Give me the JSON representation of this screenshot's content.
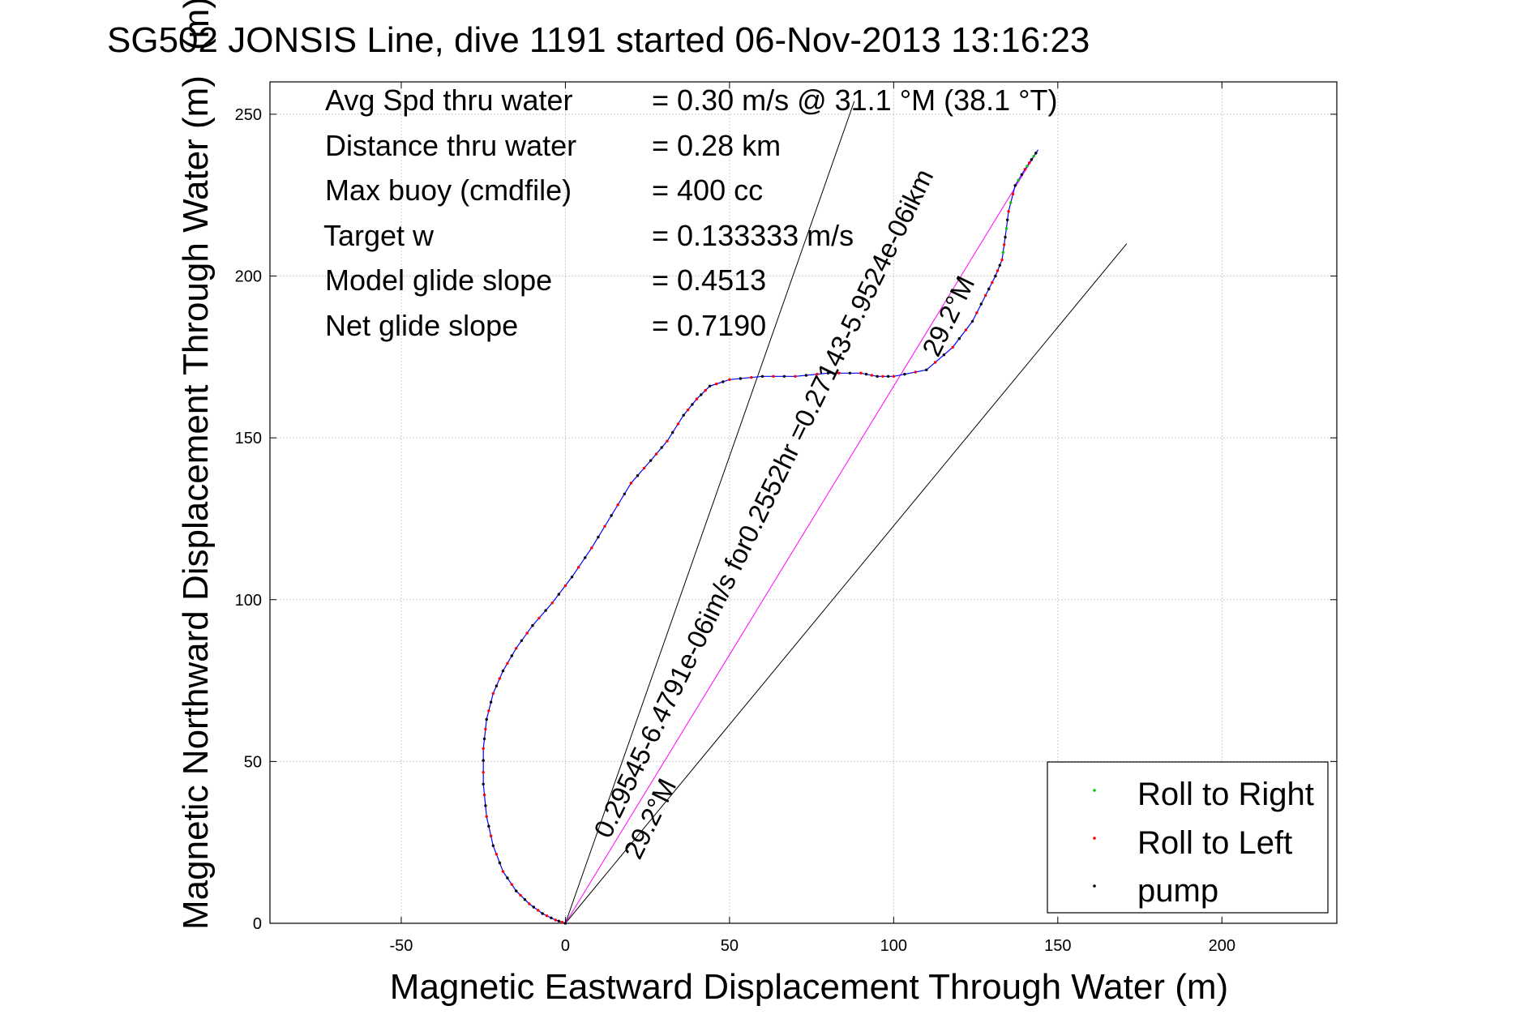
{
  "chart_data": {
    "type": "line",
    "title": "SG502 JONSIS Line, dive 1191 started 06-Nov-2013 13:16:23",
    "title_overlay": "(m)",
    "xlabel": "Magnetic Eastward Displacement Through Water (m)",
    "ylabel": "Magnetic Northward Displacement Through Water (m)",
    "xlim": [
      -90,
      235
    ],
    "ylim": [
      0,
      260
    ],
    "xticks": [
      -50,
      0,
      50,
      100,
      150,
      200
    ],
    "yticks": [
      0,
      50,
      100,
      150,
      200,
      250
    ],
    "grid": true,
    "legend_position": "bottom-right",
    "stats": [
      {
        "label": "Avg Spd thru water",
        "value": "=  0.30 m/s @  31.1 °M (38.1 °T)"
      },
      {
        "label": "Distance thru water",
        "value": "=  0.28 km"
      },
      {
        "label": "Max buoy (cmdfile)",
        "value": "= 400 cc"
      },
      {
        "label": "Target w",
        "value": "= 0.133333 m/s"
      },
      {
        "label": "Model glide slope",
        "value": "= 0.4513"
      },
      {
        "label": "Net glide slope",
        "value": "= 0.7190"
      }
    ],
    "series": [
      {
        "name": "Roll to Right",
        "color": "#00cc00"
      },
      {
        "name": "Roll to Left",
        "color": "#ff0000"
      },
      {
        "name": "pump",
        "color": "#000000"
      }
    ],
    "track_color": "#0000ff",
    "track_x": [
      0,
      -3,
      -7,
      -11,
      -15,
      -19,
      -22,
      -24,
      -25,
      -25,
      -24,
      -22,
      -19,
      -15,
      -10,
      -4,
      2,
      8,
      14,
      20,
      26,
      31,
      36,
      40,
      44,
      50,
      60,
      70,
      80,
      90,
      95,
      100,
      110,
      118,
      124,
      128,
      131,
      133,
      134,
      135,
      137,
      140,
      142,
      144
    ],
    "track_y": [
      0,
      1,
      3,
      6,
      10,
      16,
      24,
      33,
      43,
      54,
      63,
      71,
      78,
      85,
      92,
      99,
      107,
      116,
      126,
      136,
      143,
      149,
      157,
      162,
      166,
      168,
      169,
      169,
      170,
      170,
      169,
      169,
      171,
      178,
      186,
      194,
      200,
      205,
      212,
      220,
      228,
      233,
      236,
      239
    ],
    "lines": [
      {
        "name": "heading-line-upper",
        "x": [
          0,
          88
        ],
        "y": [
          0,
          254
        ]
      },
      {
        "name": "heading-line-lower",
        "x": [
          0,
          171
        ],
        "y": [
          0,
          210
        ]
      },
      {
        "name": "current-vector-line",
        "x": [
          0,
          144
        ],
        "y": [
          0,
          239
        ]
      }
    ],
    "annotations": [
      {
        "text": "0.29545-6.4791e-06im/s for0.2552hr =0.27143-5.9524e-06ikm"
      },
      {
        "text": "29.2°M"
      },
      {
        "text": "29.2°M"
      }
    ]
  }
}
